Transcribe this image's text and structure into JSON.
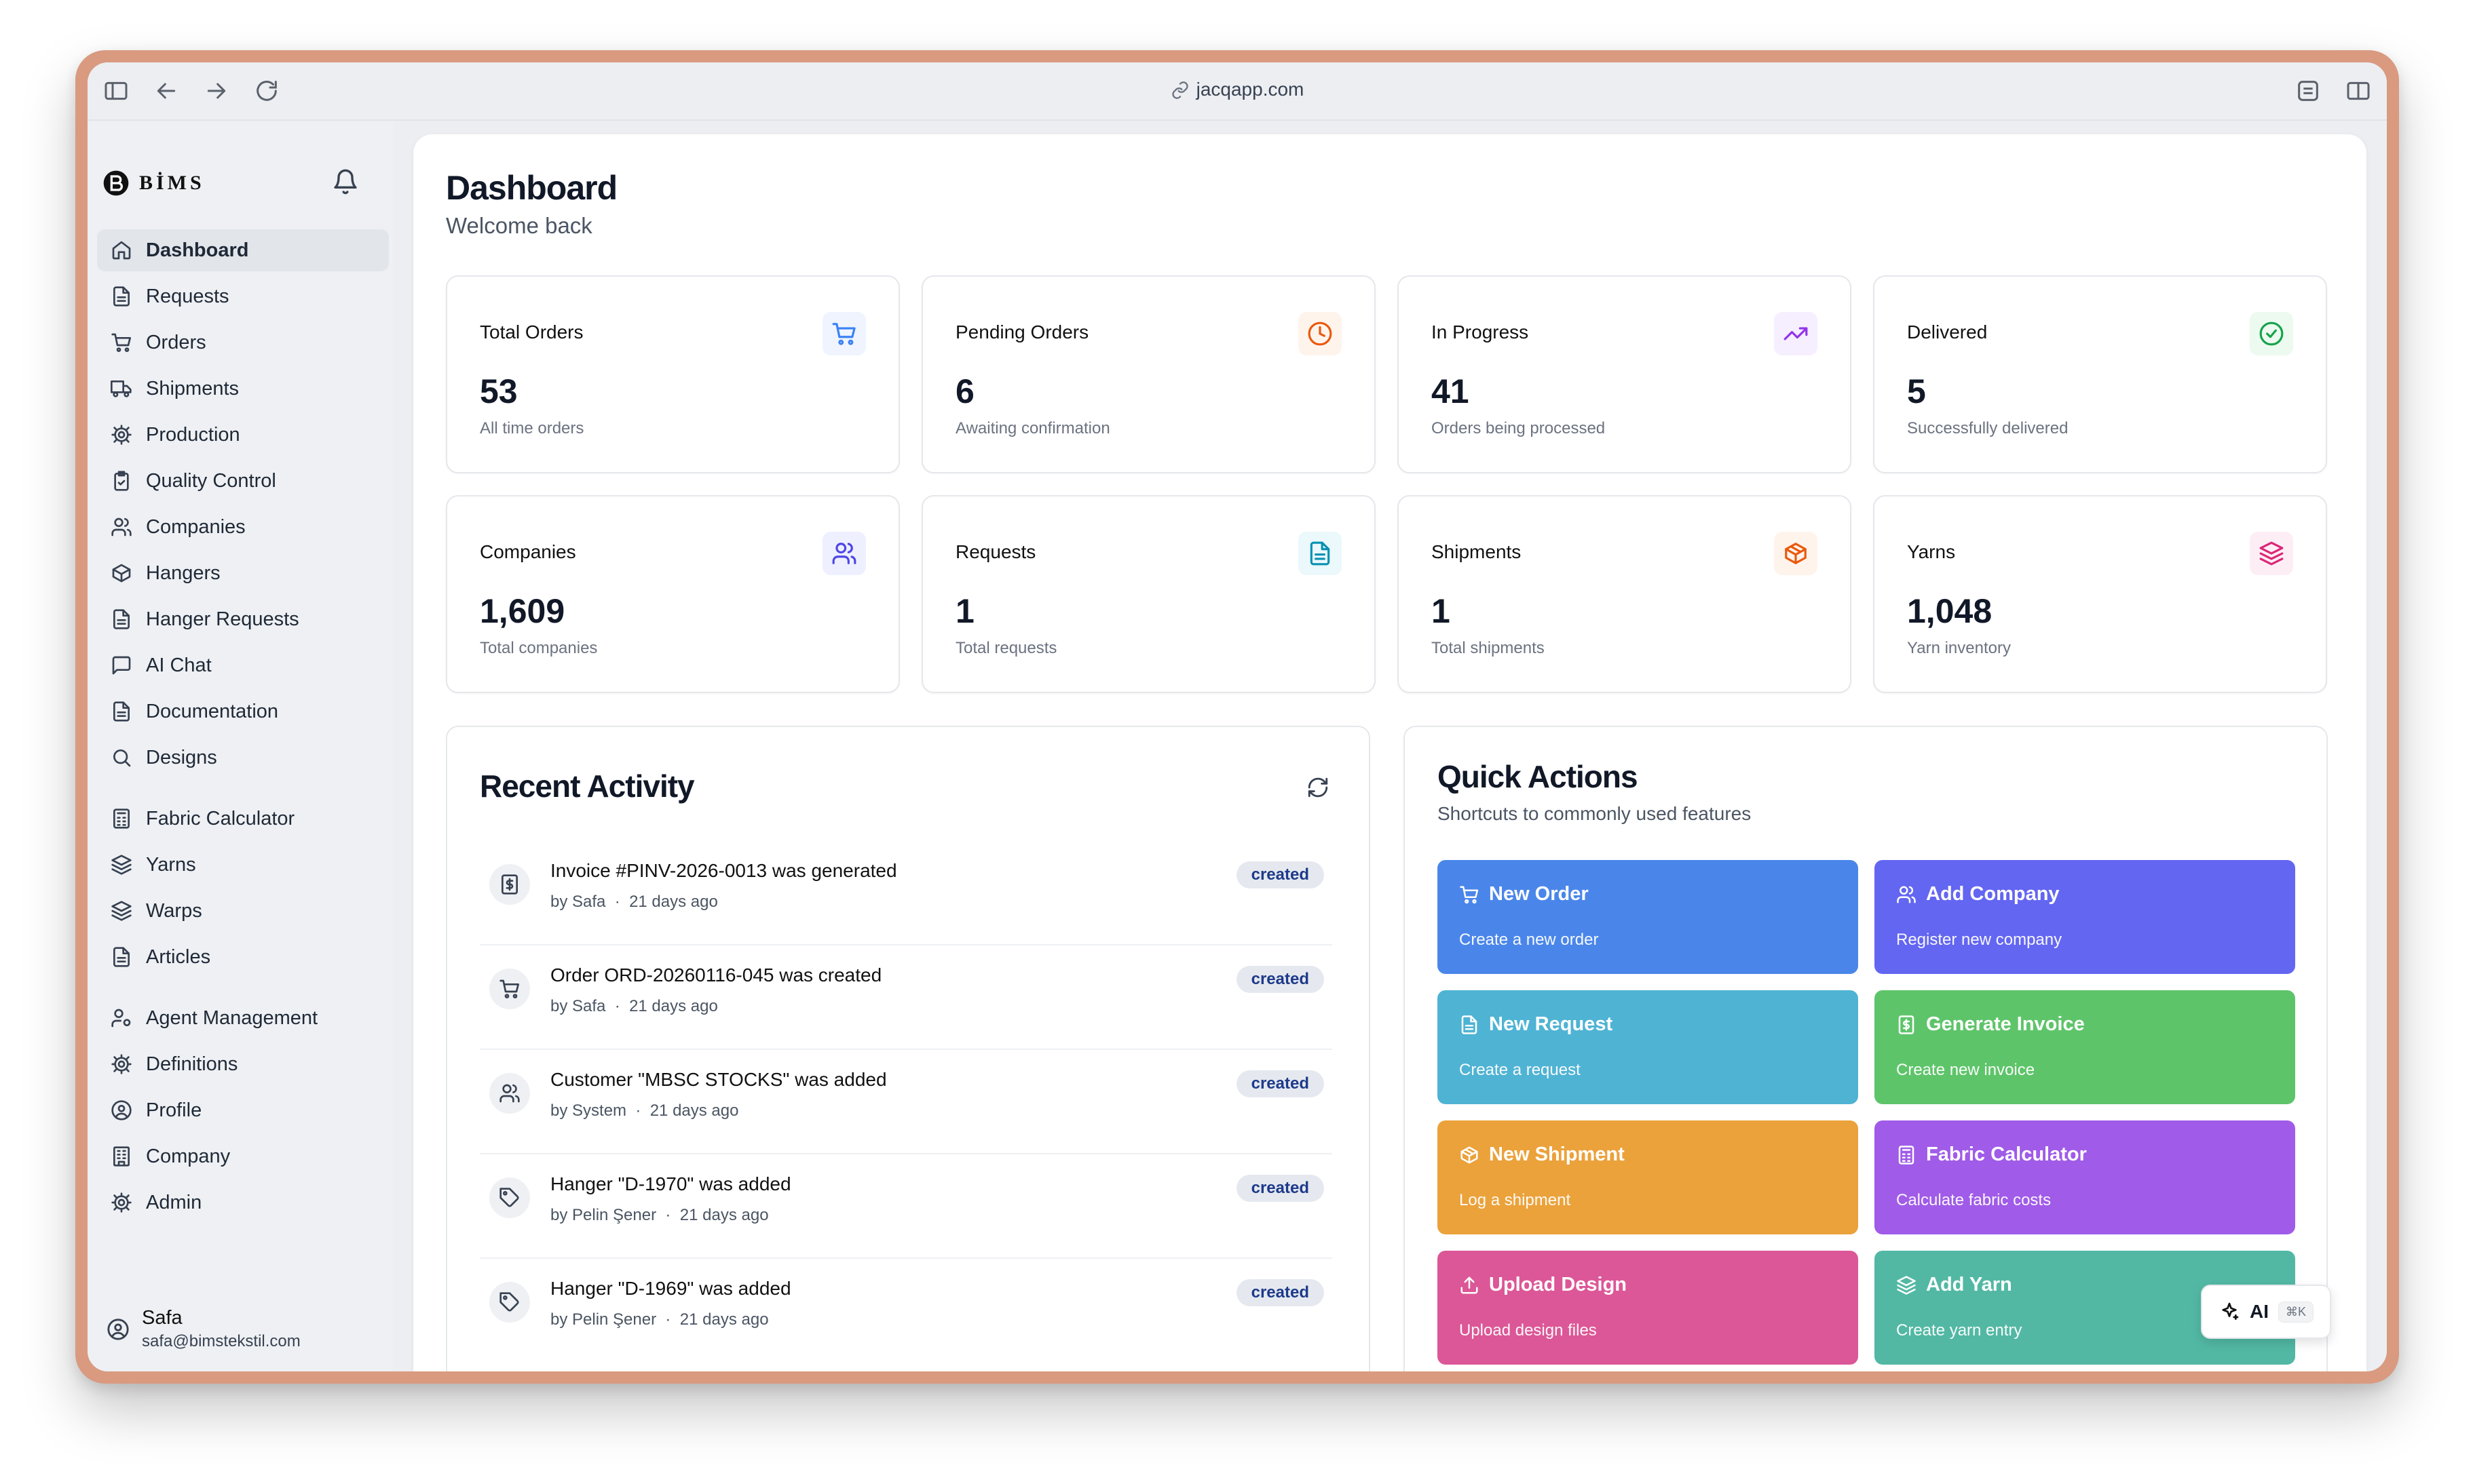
{
  "browser": {
    "url": "jacqapp.com"
  },
  "brand": {
    "name": "BİMS"
  },
  "sidebar": {
    "items": [
      {
        "label": "Dashboard",
        "icon": "home-icon"
      },
      {
        "label": "Requests",
        "icon": "document-icon"
      },
      {
        "label": "Orders",
        "icon": "cart-icon"
      },
      {
        "label": "Shipments",
        "icon": "truck-icon"
      },
      {
        "label": "Production",
        "icon": "gear-icon"
      },
      {
        "label": "Quality Control",
        "icon": "clipboard-check-icon"
      },
      {
        "label": "Companies",
        "icon": "users-icon"
      },
      {
        "label": "Hangers",
        "icon": "box-icon"
      },
      {
        "label": "Hanger Requests",
        "icon": "document-icon"
      },
      {
        "label": "AI Chat",
        "icon": "chat-icon"
      },
      {
        "label": "Documentation",
        "icon": "document-icon"
      },
      {
        "label": "Designs",
        "icon": "search-icon"
      },
      {
        "label": "Fabric Calculator",
        "icon": "calculator-icon"
      },
      {
        "label": "Yarns",
        "icon": "layers-icon"
      },
      {
        "label": "Warps",
        "icon": "layers-icon"
      },
      {
        "label": "Articles",
        "icon": "document-icon"
      },
      {
        "label": "Agent Management",
        "icon": "user-cog-icon"
      },
      {
        "label": "Definitions",
        "icon": "gear-icon"
      },
      {
        "label": "Profile",
        "icon": "user-circle-icon"
      },
      {
        "label": "Company",
        "icon": "building-icon"
      },
      {
        "label": "Admin",
        "icon": "gear-icon"
      }
    ]
  },
  "user": {
    "name": "Safa",
    "email": "safa@bimstekstil.com"
  },
  "header": {
    "title": "Dashboard",
    "subtitle": "Welcome back"
  },
  "stats": [
    {
      "title": "Total Orders",
      "value": "53",
      "desc": "All time orders",
      "icon": "cart-icon",
      "color": "#3b82f6"
    },
    {
      "title": "Pending Orders",
      "value": "6",
      "desc": "Awaiting confirmation",
      "icon": "clock-icon",
      "color": "#ea580c"
    },
    {
      "title": "In Progress",
      "value": "41",
      "desc": "Orders being processed",
      "icon": "trending-up-icon",
      "color": "#9333ea"
    },
    {
      "title": "Delivered",
      "value": "5",
      "desc": "Successfully delivered",
      "icon": "check-circle-icon",
      "color": "#16a34a"
    },
    {
      "title": "Companies",
      "value": "1,609",
      "desc": "Total companies",
      "icon": "users-icon",
      "color": "#4f46e5"
    },
    {
      "title": "Requests",
      "value": "1",
      "desc": "Total requests",
      "icon": "document-icon",
      "color": "#0891b2"
    },
    {
      "title": "Shipments",
      "value": "1",
      "desc": "Total shipments",
      "icon": "package-icon",
      "color": "#ea580c"
    },
    {
      "title": "Yarns",
      "value": "1,048",
      "desc": "Yarn inventory",
      "icon": "layers-icon",
      "color": "#db2777"
    }
  ],
  "activity": {
    "title": "Recent Activity",
    "items": [
      {
        "text": "Invoice #PINV-2026-0013 was generated",
        "by": "by Safa",
        "time": "21 days ago",
        "badge": "created",
        "icon": "invoice-icon"
      },
      {
        "text": "Order ORD-20260116-045 was created",
        "by": "by Safa",
        "time": "21 days ago",
        "badge": "created",
        "icon": "cart-icon"
      },
      {
        "text": "Customer \"MBSC STOCKS\" was added",
        "by": "by System",
        "time": "21 days ago",
        "badge": "created",
        "icon": "users-icon"
      },
      {
        "text": "Hanger \"D-1970\" was added",
        "by": "by Pelin Şener",
        "time": "21 days ago",
        "badge": "created",
        "icon": "tag-icon"
      },
      {
        "text": "Hanger \"D-1969\" was added",
        "by": "by Pelin Şener",
        "time": "21 days ago",
        "badge": "created",
        "icon": "tag-icon"
      }
    ]
  },
  "quick": {
    "title": "Quick Actions",
    "subtitle": "Shortcuts to commonly used features",
    "items": [
      {
        "title": "New Order",
        "desc": "Create a new order",
        "color": "#4a86ea",
        "icon": "cart-icon"
      },
      {
        "title": "Add Company",
        "desc": "Register new company",
        "color": "#6366f1",
        "icon": "users-icon"
      },
      {
        "title": "New Request",
        "desc": "Create a request",
        "color": "#4fb3d4",
        "icon": "document-icon"
      },
      {
        "title": "Generate Invoice",
        "desc": "Create new invoice",
        "color": "#5ec46a",
        "icon": "invoice-icon"
      },
      {
        "title": "New Shipment",
        "desc": "Log a shipment",
        "color": "#eba23b",
        "icon": "package-icon"
      },
      {
        "title": "Fabric Calculator",
        "desc": "Calculate fabric costs",
        "color": "#a05be8",
        "icon": "calculator-icon"
      },
      {
        "title": "Upload Design",
        "desc": "Upload design files",
        "color": "#dc5797",
        "icon": "upload-icon"
      },
      {
        "title": "Add Yarn",
        "desc": "Create yarn entry",
        "color": "#52b8a4",
        "icon": "layers-icon"
      }
    ]
  },
  "ai": {
    "label": "AI",
    "shortcut": "⌘K"
  }
}
